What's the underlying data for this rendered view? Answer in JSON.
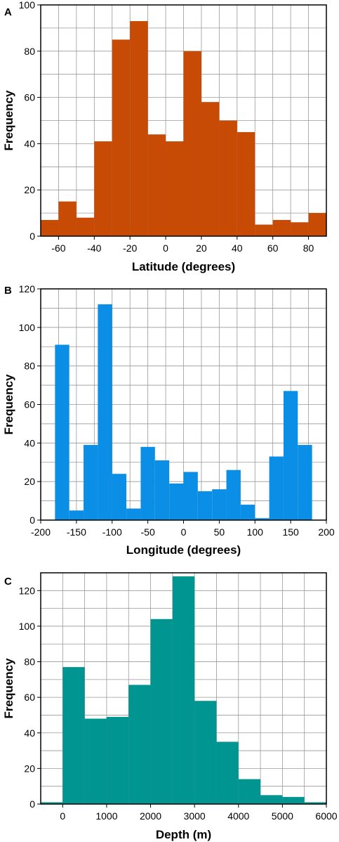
{
  "chart_data": [
    {
      "type": "bar",
      "panel_label": "A",
      "xlabel": "Latitude (degrees)",
      "ylabel": "Frequency",
      "xlim": [
        -70,
        90
      ],
      "ylim": [
        0,
        100
      ],
      "xticks": [
        -60,
        -40,
        -20,
        0,
        20,
        40,
        60,
        80
      ],
      "yticks": [
        0,
        20,
        40,
        60,
        80,
        100
      ],
      "xgrid": [
        -70,
        -60,
        -50,
        -40,
        -30,
        -20,
        -10,
        0,
        10,
        20,
        30,
        40,
        50,
        60,
        70,
        80,
        90
      ],
      "ygrid": [
        10,
        20,
        30,
        40,
        50,
        60,
        70,
        80,
        90
      ],
      "grid": true,
      "color": "#c74a05",
      "bin_edges": [
        -70,
        -60,
        -50,
        -40,
        -30,
        -20,
        -10,
        0,
        10,
        20,
        30,
        40,
        50,
        60,
        70,
        80,
        90
      ],
      "values": [
        7,
        15,
        8,
        41,
        85,
        93,
        44,
        41,
        80,
        58,
        50,
        45,
        5,
        7,
        6,
        10
      ]
    },
    {
      "type": "bar",
      "panel_label": "B",
      "xlabel": "Longitude (degrees)",
      "ylabel": "Frequency",
      "xlim": [
        -200,
        200
      ],
      "ylim": [
        0,
        120
      ],
      "xticks": [
        -200,
        -150,
        -100,
        -50,
        0,
        50,
        100,
        150,
        200
      ],
      "yticks": [
        0,
        20,
        40,
        60,
        80,
        100,
        120
      ],
      "xgrid": [
        -175,
        -150,
        -125,
        -100,
        -75,
        -50,
        -25,
        0,
        25,
        50,
        75,
        100,
        125,
        150,
        175
      ],
      "ygrid": [
        10,
        20,
        30,
        40,
        50,
        60,
        70,
        80,
        90,
        100,
        110
      ],
      "grid": true,
      "color": "#0a8ee6",
      "bin_edges": [
        -180,
        -160,
        -140,
        -120,
        -100,
        -80,
        -60,
        -40,
        -20,
        0,
        20,
        40,
        60,
        80,
        100,
        120,
        140,
        160,
        180
      ],
      "values": [
        91,
        5,
        39,
        112,
        24,
        6,
        38,
        31,
        19,
        25,
        15,
        16,
        26,
        8,
        1,
        33,
        67,
        39
      ]
    },
    {
      "type": "bar",
      "panel_label": "C",
      "xlabel": "Depth (m)",
      "ylabel": "Frequency",
      "xlim": [
        -500,
        6000
      ],
      "ylim": [
        0,
        130
      ],
      "xticks": [
        0,
        1000,
        2000,
        3000,
        4000,
        5000,
        6000
      ],
      "yticks": [
        0,
        20,
        40,
        60,
        80,
        100,
        120
      ],
      "xgrid": [
        0,
        500,
        1000,
        1500,
        2000,
        2500,
        3000,
        3500,
        4000,
        4500,
        5000,
        5500
      ],
      "ygrid": [
        10,
        20,
        30,
        40,
        50,
        60,
        70,
        80,
        90,
        100,
        110,
        120
      ],
      "grid": true,
      "color": "#009590",
      "bin_edges": [
        -500,
        0,
        500,
        1000,
        1500,
        2000,
        2500,
        3000,
        3500,
        4000,
        4500,
        5000,
        5500,
        6000
      ],
      "values": [
        1,
        77,
        48,
        49,
        67,
        104,
        128,
        58,
        35,
        14,
        5,
        4,
        1
      ]
    }
  ]
}
